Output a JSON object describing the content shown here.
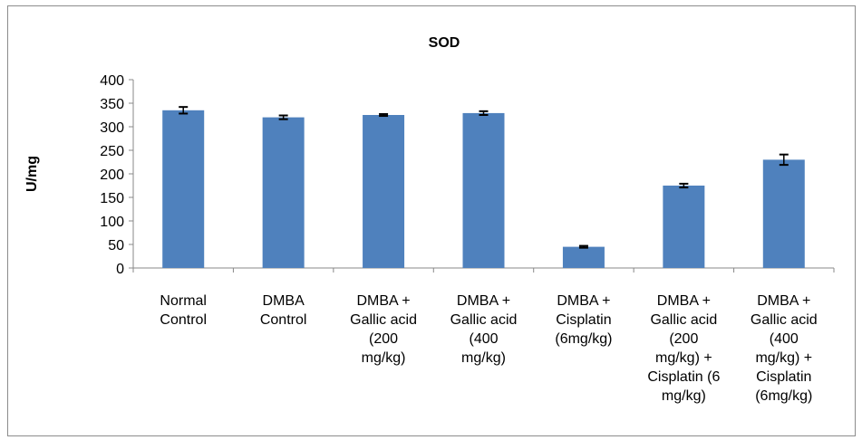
{
  "chart_data": {
    "type": "bar",
    "title": "SOD",
    "ylabel": "U/mg",
    "xlabel": "",
    "ylim": [
      0,
      400
    ],
    "yticks": [
      0,
      50,
      100,
      150,
      200,
      250,
      300,
      350,
      400
    ],
    "grid": false,
    "legend": "none",
    "bar_color": "#4f81bd",
    "categories": [
      [
        "Normal",
        "Control"
      ],
      [
        "DMBA",
        "Control"
      ],
      [
        "DMBA +",
        "Gallic acid",
        "(200",
        "mg/kg)"
      ],
      [
        "DMBA +",
        "Gallic acid",
        "(400",
        "mg/kg)"
      ],
      [
        "DMBA +",
        "Cisplatin",
        "(6mg/kg)"
      ],
      [
        "DMBA +",
        "Gallic acid",
        "(200",
        "mg/kg) +",
        "Cisplatin  (6",
        "mg/kg)"
      ],
      [
        "DMBA +",
        "Gallic acid",
        "(400",
        "mg/kg) +",
        "Cisplatin",
        "(6mg/kg)"
      ]
    ],
    "values": [
      335,
      320,
      325,
      329,
      45,
      175,
      230
    ],
    "errors": [
      7,
      4,
      2,
      4,
      2,
      4,
      11
    ]
  }
}
